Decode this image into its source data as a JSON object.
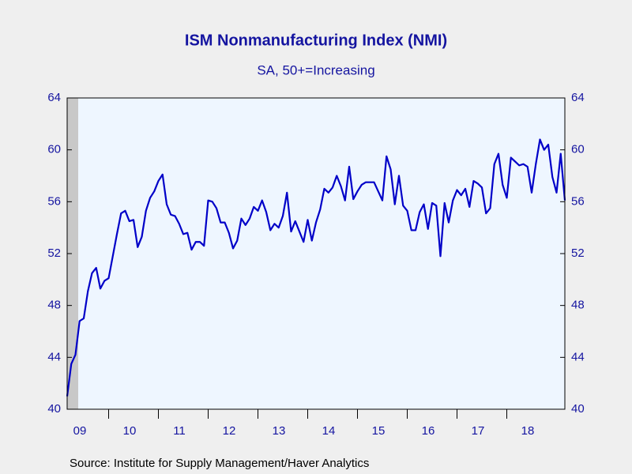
{
  "chart_data": {
    "type": "line",
    "title": "ISM Nonmanufacturing Index (NMI)",
    "subtitle": "SA, 50+=Increasing",
    "source": "Source:  Institute for Supply Management/Haver Analytics",
    "categories": [
      null,
      null,
      null,
      null,
      "09",
      null,
      null,
      null,
      null,
      null,
      null,
      null,
      null,
      null,
      null,
      null,
      "10",
      null,
      null,
      null,
      null,
      null,
      null,
      null,
      null,
      null,
      null,
      null,
      "11",
      null,
      null,
      null,
      null,
      null,
      null,
      null,
      null,
      null,
      null,
      null,
      "12",
      null,
      null,
      null,
      null,
      null,
      null,
      null,
      null,
      null,
      null,
      null,
      "13",
      null,
      null,
      null,
      null,
      null,
      null,
      null,
      null,
      null,
      null,
      null,
      "14",
      null,
      null,
      null,
      null,
      null,
      null,
      null,
      null,
      null,
      null,
      null,
      "15",
      null,
      null,
      null,
      null,
      null,
      null,
      null,
      null,
      null,
      null,
      null,
      "16",
      null,
      null,
      null,
      null,
      null,
      null,
      null,
      null,
      null,
      null,
      null,
      "17",
      null,
      null,
      null,
      null,
      null,
      null,
      null,
      null,
      null,
      null,
      null,
      "18",
      null,
      null,
      null,
      null,
      null,
      null,
      null,
      null
    ],
    "series": [
      {
        "name": "ISM NMI",
        "color": "#0000c8",
        "values": [
          41.0,
          43.5,
          44.2,
          46.8,
          47.0,
          49.1,
          50.5,
          50.9,
          49.3,
          49.9,
          50.1,
          51.8,
          53.5,
          55.1,
          55.3,
          54.5,
          54.6,
          52.5,
          53.3,
          55.3,
          56.3,
          56.8,
          57.6,
          58.1,
          55.8,
          55.0,
          54.9,
          54.3,
          53.5,
          53.6,
          52.3,
          52.9,
          52.9,
          52.6,
          56.1,
          56.0,
          55.5,
          54.4,
          54.4,
          53.6,
          52.4,
          53.0,
          54.7,
          54.2,
          54.7,
          55.6,
          55.3,
          56.1,
          55.2,
          53.8,
          54.3,
          54.0,
          54.9,
          56.7,
          53.7,
          54.5,
          53.7,
          52.9,
          54.6,
          53.0,
          54.4,
          55.4,
          57.0,
          56.7,
          57.1,
          58.0,
          57.2,
          56.1,
          58.7,
          56.2,
          56.8,
          57.3,
          57.5,
          57.5,
          57.5,
          56.8,
          56.1,
          59.5,
          58.5,
          55.8,
          58.0,
          55.7,
          55.3,
          53.8,
          53.8,
          55.2,
          55.8,
          53.9,
          55.9,
          55.7,
          51.8,
          55.9,
          54.4,
          56.1,
          56.9,
          56.5,
          57.0,
          55.6,
          57.6,
          57.4,
          57.1,
          55.1,
          55.5,
          58.9,
          59.7,
          57.3,
          56.3,
          59.4,
          59.1,
          58.8,
          58.9,
          58.7,
          56.7,
          58.9,
          60.8,
          60.0,
          60.4,
          57.9,
          56.7,
          59.7,
          56.1
        ]
      }
    ],
    "ylim": [
      40,
      64
    ],
    "yticks": [
      40,
      44,
      48,
      52,
      56,
      60,
      64
    ],
    "y2ticks": [
      40,
      44,
      48,
      52,
      56,
      60,
      64
    ]
  }
}
